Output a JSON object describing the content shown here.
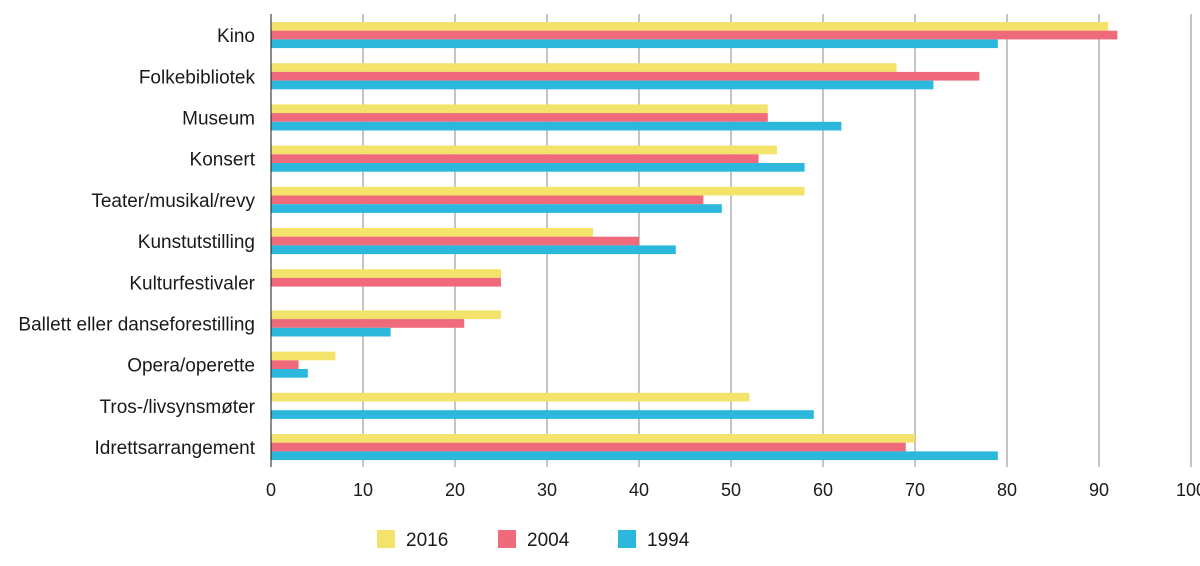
{
  "chart_data": {
    "type": "bar",
    "orientation": "horizontal",
    "categories": [
      "Kino",
      "Folkebibliotek",
      "Museum",
      "Konsert",
      "Teater/musikal/revy",
      "Kunstutstilling",
      "Kulturfestivaler",
      "Ballett eller danseforestilling",
      "Opera/operette",
      "Tros-/livsynsmøter",
      "Idrettsarrangement"
    ],
    "series": [
      {
        "name": "2016",
        "color": "#f4e36b",
        "values": [
          91,
          68,
          54,
          55,
          58,
          35,
          25,
          25,
          7,
          52,
          70
        ]
      },
      {
        "name": "2004",
        "color": "#ef6b7b",
        "values": [
          92,
          77,
          54,
          53,
          47,
          40,
          25,
          21,
          3,
          null,
          69
        ]
      },
      {
        "name": "1994",
        "color": "#2cb7dc",
        "values": [
          79,
          72,
          62,
          58,
          49,
          44,
          null,
          13,
          4,
          59,
          79
        ]
      }
    ],
    "xlim": [
      0,
      100
    ],
    "xticks": [
      "0",
      "10",
      "20",
      "30",
      "40",
      "50",
      "60",
      "70",
      "80",
      "90",
      "100"
    ],
    "grid": "vertical",
    "legend_position": "bottom"
  }
}
